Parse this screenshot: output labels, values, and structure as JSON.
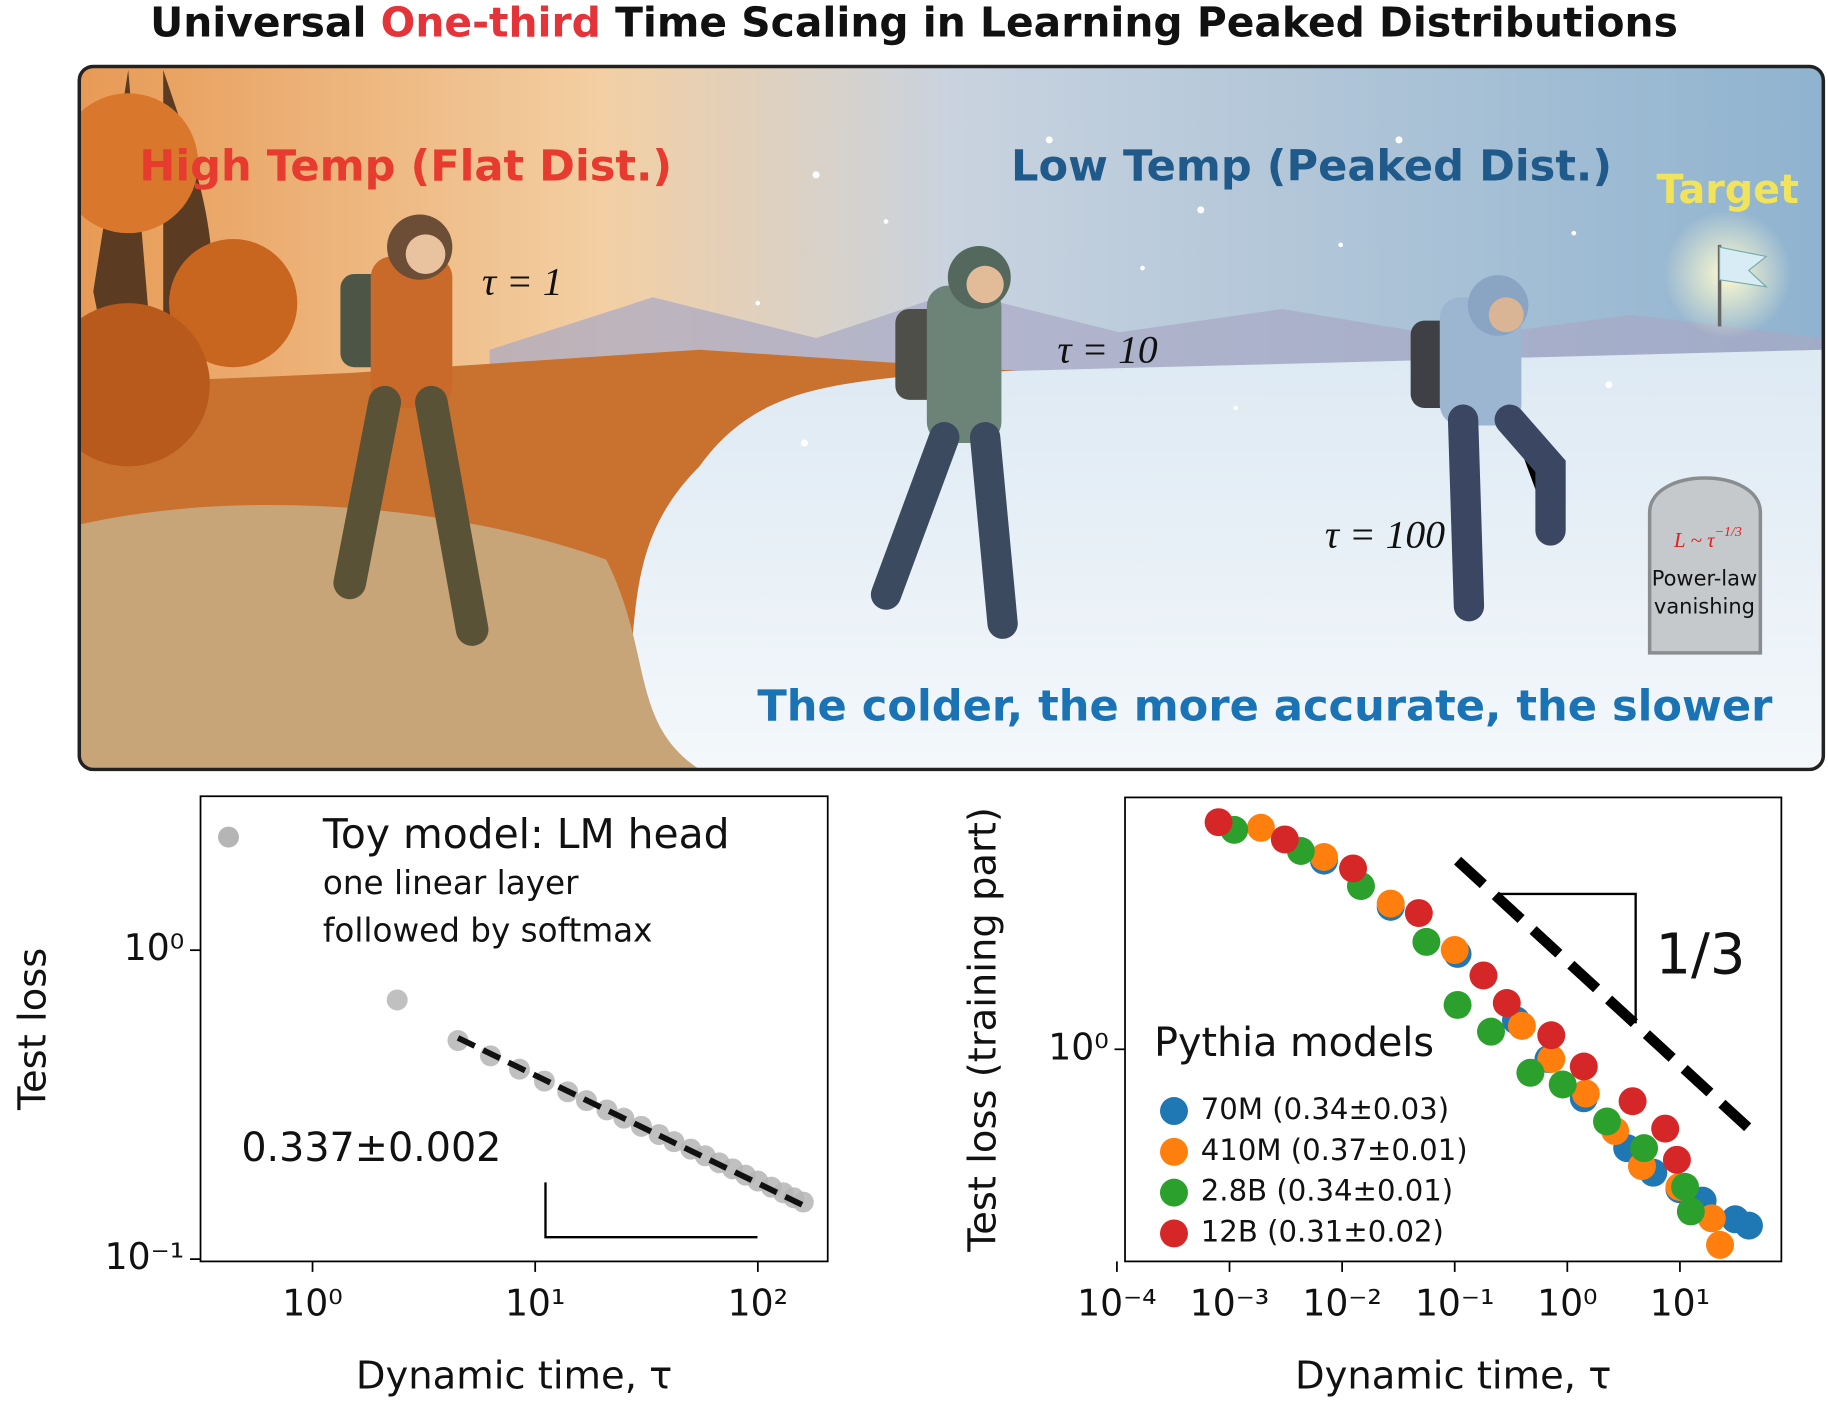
{
  "title": {
    "before": "Universal",
    "highlight": "One-third",
    "after": "Time Scaling in Learning Peaked Distributions"
  },
  "illustration": {
    "high_temp": "High Temp (Flat Dist.)",
    "low_temp": "Low Temp (Peaked Dist.)",
    "target": "Target",
    "tau_1": "τ = 1",
    "tau_10": "τ = 10",
    "tau_100": "τ = 100",
    "formula_base": "L ~ τ",
    "formula_exponent": "−1/3",
    "tomb_line1": "Power-law",
    "tomb_line2": "vanishing",
    "caption": "The colder, the more accurate, the slower"
  },
  "chart_data": [
    {
      "type": "scatter",
      "xscale": "log",
      "yscale": "log",
      "xlabel": "Dynamic time, τ",
      "ylabel": "Test loss",
      "xlim": [
        0.314,
        206
      ],
      "ylim": [
        0.0983,
        3.15
      ],
      "xticks": [
        {
          "value": 1,
          "label": "10⁰"
        },
        {
          "value": 10,
          "label": "10¹"
        },
        {
          "value": 100,
          "label": "10²"
        }
      ],
      "yticks": [
        {
          "value": 0.1,
          "label": "10⁻¹"
        },
        {
          "value": 1,
          "label": "10⁰"
        }
      ],
      "series": [
        {
          "name": "Toy model: LM head",
          "color": "#b5b5b5",
          "x": [
            2.4,
            4.5,
            6.3,
            8.5,
            11,
            14,
            17,
            21,
            25,
            30,
            36,
            42,
            50,
            58,
            67,
            77,
            88,
            100,
            115,
            130,
            145,
            160
          ],
          "values": [
            0.69,
            0.51,
            0.455,
            0.412,
            0.377,
            0.348,
            0.326,
            0.304,
            0.286,
            0.269,
            0.253,
            0.24,
            0.227,
            0.216,
            0.205,
            0.196,
            0.187,
            0.179,
            0.171,
            0.164,
            0.158,
            0.153
          ]
        }
      ],
      "legend_notes": [
        "one linear layer",
        "followed by softmax"
      ],
      "fit": {
        "x": [
          4.5,
          158
        ],
        "values": [
          0.52,
          0.15
        ],
        "color": "#111111"
      },
      "annotation": "0.337±0.002"
    },
    {
      "type": "scatter",
      "xscale": "log",
      "yscale": "log",
      "xlabel": "Dynamic time, τ",
      "ylabel": "Test loss (training part)",
      "xlim": [
        0.000118,
        79.6
      ],
      "ylim": [
        0.207,
        6.49
      ],
      "xticks": [
        {
          "value": 0.0001,
          "label": "10⁻⁴"
        },
        {
          "value": 0.001,
          "label": "10⁻³"
        },
        {
          "value": 0.01,
          "label": "10⁻²"
        },
        {
          "value": 0.1,
          "label": "10⁻¹"
        },
        {
          "value": 1,
          "label": "10⁰"
        },
        {
          "value": 10,
          "label": "10¹"
        }
      ],
      "yticks": [
        {
          "value": 1,
          "label": "10⁰"
        }
      ],
      "legend_title": "Pythia models",
      "series": [
        {
          "name": "70M (0.34±0.03)",
          "color": "#1f77b4",
          "x": [
            0.0069,
            0.027,
            0.106,
            0.35,
            0.68,
            1.4,
            3.4,
            5.8,
            9.9,
            15.9,
            31,
            41
          ],
          "values": [
            4.06,
            2.88,
            2.03,
            1.24,
            0.93,
            0.695,
            0.48,
            0.4,
            0.354,
            0.325,
            0.283,
            0.27
          ]
        },
        {
          "name": "410M (0.37±0.01)",
          "color": "#ff7f0e",
          "x": [
            0.0019,
            0.0069,
            0.027,
            0.1,
            0.395,
            0.72,
            1.46,
            2.66,
            4.6,
            9.9,
            19.2,
            22.7
          ],
          "values": [
            5.18,
            4.17,
            2.95,
            2.09,
            1.19,
            0.93,
            0.72,
            0.545,
            0.42,
            0.36,
            0.285,
            0.234
          ]
        },
        {
          "name": "2.8B (0.34±0.01)",
          "color": "#2ca02c",
          "x": [
            0.0011,
            0.0043,
            0.0147,
            0.056,
            0.106,
            0.21,
            0.47,
            0.91,
            2.25,
            4.8,
            11.1,
            12.5
          ],
          "values": [
            5.1,
            4.36,
            3.36,
            2.22,
            1.39,
            1.14,
            0.84,
            0.77,
            0.585,
            0.48,
            0.36,
            0.3
          ]
        },
        {
          "name": "12B (0.31±0.02)",
          "color": "#d62728",
          "x": [
            0.0008,
            0.0031,
            0.0125,
            0.048,
            0.18,
            0.29,
            0.72,
            1.4,
            3.8,
            7.4,
            9.4
          ],
          "values": [
            5.4,
            4.75,
            3.83,
            2.75,
            1.73,
            1.41,
            1.11,
            0.88,
            0.68,
            0.555,
            0.44
          ]
        }
      ],
      "fit": {
        "x": [
          0.106,
          50
        ],
        "values": [
          4.06,
          0.52
        ],
        "color": "#000000"
      },
      "annotation": "1/3"
    }
  ]
}
